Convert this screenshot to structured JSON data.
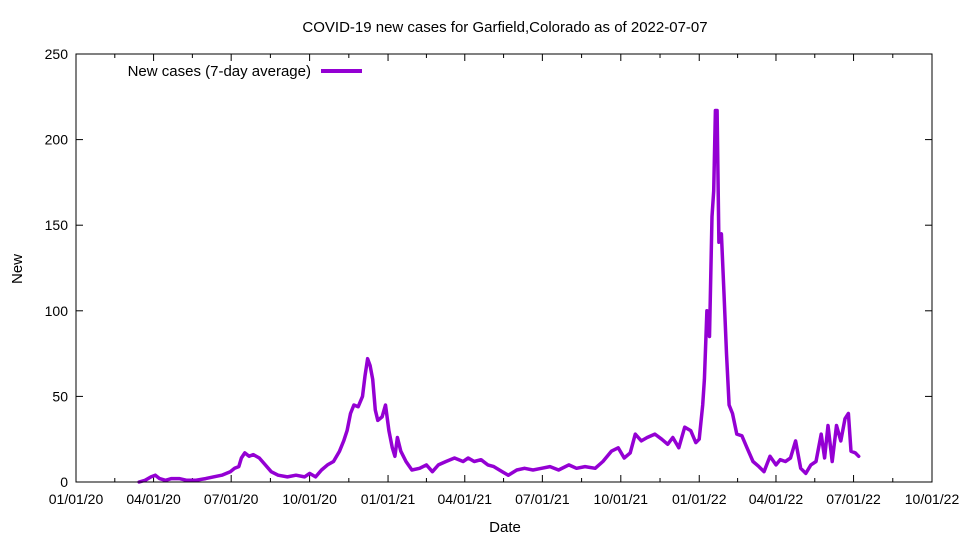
{
  "chart_data": {
    "type": "line",
    "title": "COVID-19 new cases for Garfield,Colorado as of 2022-07-07",
    "xlabel": "Date",
    "ylabel": "New",
    "xlim": [
      "2020-01-01",
      "2022-10-01"
    ],
    "ylim": [
      0,
      250
    ],
    "x_ticks": [
      "01/01/20",
      "04/01/20",
      "07/01/20",
      "10/01/20",
      "01/01/21",
      "04/01/21",
      "07/01/21",
      "10/01/21",
      "01/01/22",
      "04/01/22",
      "07/01/22",
      "10/01/22"
    ],
    "y_ticks": [
      0,
      50,
      100,
      150,
      200,
      250
    ],
    "grid": false,
    "legend_position": "top-left",
    "series": [
      {
        "name": "New cases (7-day average)",
        "color": "#9400d3",
        "points": [
          [
            "2020-03-15",
            0
          ],
          [
            "2020-03-22",
            1
          ],
          [
            "2020-03-29",
            3
          ],
          [
            "2020-04-03",
            4
          ],
          [
            "2020-04-08",
            2
          ],
          [
            "2020-04-15",
            1
          ],
          [
            "2020-04-22",
            2
          ],
          [
            "2020-05-01",
            2
          ],
          [
            "2020-05-10",
            1
          ],
          [
            "2020-05-20",
            1
          ],
          [
            "2020-06-01",
            2
          ],
          [
            "2020-06-10",
            3
          ],
          [
            "2020-06-20",
            4
          ],
          [
            "2020-06-30",
            6
          ],
          [
            "2020-07-05",
            8
          ],
          [
            "2020-07-10",
            9
          ],
          [
            "2020-07-13",
            14
          ],
          [
            "2020-07-17",
            17
          ],
          [
            "2020-07-22",
            15
          ],
          [
            "2020-07-27",
            16
          ],
          [
            "2020-08-03",
            14
          ],
          [
            "2020-08-10",
            10
          ],
          [
            "2020-08-17",
            6
          ],
          [
            "2020-08-25",
            4
          ],
          [
            "2020-09-05",
            3
          ],
          [
            "2020-09-15",
            4
          ],
          [
            "2020-09-25",
            3
          ],
          [
            "2020-10-01",
            5
          ],
          [
            "2020-10-08",
            3
          ],
          [
            "2020-10-15",
            7
          ],
          [
            "2020-10-22",
            10
          ],
          [
            "2020-10-29",
            12
          ],
          [
            "2020-11-05",
            18
          ],
          [
            "2020-11-10",
            24
          ],
          [
            "2020-11-14",
            30
          ],
          [
            "2020-11-18",
            40
          ],
          [
            "2020-11-22",
            45
          ],
          [
            "2020-11-27",
            44
          ],
          [
            "2020-12-02",
            50
          ],
          [
            "2020-12-05",
            62
          ],
          [
            "2020-12-08",
            72
          ],
          [
            "2020-12-11",
            68
          ],
          [
            "2020-12-14",
            60
          ],
          [
            "2020-12-17",
            42
          ],
          [
            "2020-12-20",
            36
          ],
          [
            "2020-12-25",
            38
          ],
          [
            "2020-12-29",
            45
          ],
          [
            "2021-01-02",
            30
          ],
          [
            "2021-01-06",
            20
          ],
          [
            "2021-01-09",
            15
          ],
          [
            "2021-01-12",
            26
          ],
          [
            "2021-01-16",
            18
          ],
          [
            "2021-01-22",
            12
          ],
          [
            "2021-01-29",
            7
          ],
          [
            "2021-02-07",
            8
          ],
          [
            "2021-02-15",
            10
          ],
          [
            "2021-02-22",
            6
          ],
          [
            "2021-03-01",
            10
          ],
          [
            "2021-03-10",
            12
          ],
          [
            "2021-03-20",
            14
          ],
          [
            "2021-03-30",
            12
          ],
          [
            "2021-04-05",
            14
          ],
          [
            "2021-04-12",
            12
          ],
          [
            "2021-04-20",
            13
          ],
          [
            "2021-04-28",
            10
          ],
          [
            "2021-05-05",
            9
          ],
          [
            "2021-05-15",
            6
          ],
          [
            "2021-05-22",
            4
          ],
          [
            "2021-06-01",
            7
          ],
          [
            "2021-06-10",
            8
          ],
          [
            "2021-06-20",
            7
          ],
          [
            "2021-06-30",
            8
          ],
          [
            "2021-07-10",
            9
          ],
          [
            "2021-07-20",
            7
          ],
          [
            "2021-08-01",
            10
          ],
          [
            "2021-08-10",
            8
          ],
          [
            "2021-08-20",
            9
          ],
          [
            "2021-09-01",
            8
          ],
          [
            "2021-09-10",
            12
          ],
          [
            "2021-09-20",
            18
          ],
          [
            "2021-09-28",
            20
          ],
          [
            "2021-10-05",
            14
          ],
          [
            "2021-10-12",
            17
          ],
          [
            "2021-10-18",
            28
          ],
          [
            "2021-10-25",
            24
          ],
          [
            "2021-11-01",
            26
          ],
          [
            "2021-11-10",
            28
          ],
          [
            "2021-11-18",
            25
          ],
          [
            "2021-11-25",
            22
          ],
          [
            "2021-12-01",
            26
          ],
          [
            "2021-12-08",
            20
          ],
          [
            "2021-12-15",
            32
          ],
          [
            "2021-12-22",
            30
          ],
          [
            "2021-12-28",
            23
          ],
          [
            "2022-01-01",
            25
          ],
          [
            "2022-01-05",
            45
          ],
          [
            "2022-01-07",
            60
          ],
          [
            "2022-01-10",
            100
          ],
          [
            "2022-01-13",
            85
          ],
          [
            "2022-01-16",
            155
          ],
          [
            "2022-01-18",
            170
          ],
          [
            "2022-01-20",
            217
          ],
          [
            "2022-01-22",
            217
          ],
          [
            "2022-01-24",
            140
          ],
          [
            "2022-01-27",
            145
          ],
          [
            "2022-01-30",
            110
          ],
          [
            "2022-02-02",
            75
          ],
          [
            "2022-02-05",
            45
          ],
          [
            "2022-02-09",
            40
          ],
          [
            "2022-02-14",
            28
          ],
          [
            "2022-02-20",
            27
          ],
          [
            "2022-02-26",
            20
          ],
          [
            "2022-03-05",
            12
          ],
          [
            "2022-03-12",
            9
          ],
          [
            "2022-03-18",
            6
          ],
          [
            "2022-03-25",
            15
          ],
          [
            "2022-04-01",
            10
          ],
          [
            "2022-04-06",
            13
          ],
          [
            "2022-04-12",
            12
          ],
          [
            "2022-04-18",
            14
          ],
          [
            "2022-04-24",
            24
          ],
          [
            "2022-04-30",
            8
          ],
          [
            "2022-05-06",
            5
          ],
          [
            "2022-05-12",
            10
          ],
          [
            "2022-05-18",
            12
          ],
          [
            "2022-05-24",
            28
          ],
          [
            "2022-05-28",
            14
          ],
          [
            "2022-06-01",
            33
          ],
          [
            "2022-06-06",
            12
          ],
          [
            "2022-06-11",
            33
          ],
          [
            "2022-06-16",
            24
          ],
          [
            "2022-06-21",
            37
          ],
          [
            "2022-06-25",
            40
          ],
          [
            "2022-06-28",
            18
          ],
          [
            "2022-07-03",
            17
          ],
          [
            "2022-07-07",
            15
          ]
        ]
      }
    ]
  }
}
